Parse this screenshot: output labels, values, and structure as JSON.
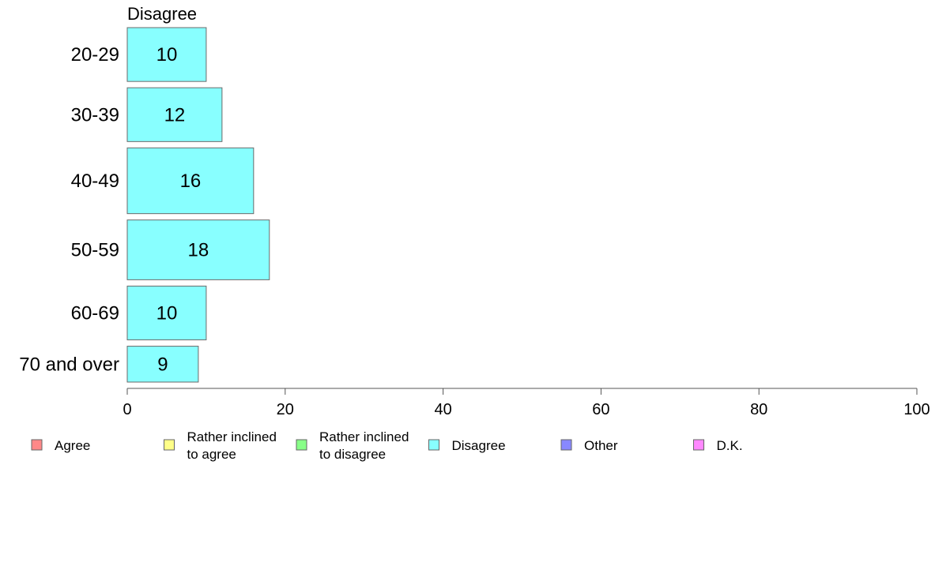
{
  "chart_data": {
    "type": "bar",
    "orientation": "horizontal",
    "panel_title": "Disagree",
    "categories": [
      "20-29",
      "30-39",
      "40-49",
      "50-59",
      "60-69",
      "70 and over"
    ],
    "series": [
      {
        "name": "Disagree",
        "color": "#88ffff",
        "values": [
          10,
          12,
          16,
          18,
          10,
          9
        ],
        "labels": [
          "10",
          "12",
          "16",
          "18",
          "10",
          "9"
        ]
      }
    ],
    "category_weights": [
      0.9,
      0.9,
      1.1,
      1.0,
      0.9,
      0.6
    ],
    "xlim": [
      0,
      100
    ],
    "xticks": [
      0,
      20,
      40,
      60,
      80,
      100
    ],
    "xtick_labels": [
      "0",
      "20",
      "40",
      "60",
      "80",
      "100"
    ],
    "grid": false,
    "legend_position": "bottom",
    "legend": [
      {
        "lines": [
          "Agree"
        ],
        "color": "#ff8888"
      },
      {
        "lines": [
          "Rather inclined",
          "to agree"
        ],
        "color": "#ffff88"
      },
      {
        "lines": [
          "Rather inclined",
          "to disagree"
        ],
        "color": "#88ff88"
      },
      {
        "lines": [
          "Disagree"
        ],
        "color": "#88ffff"
      },
      {
        "lines": [
          "Other"
        ],
        "color": "#8888ff"
      },
      {
        "lines": [
          "D.K."
        ],
        "color": "#ff88ff"
      }
    ]
  }
}
